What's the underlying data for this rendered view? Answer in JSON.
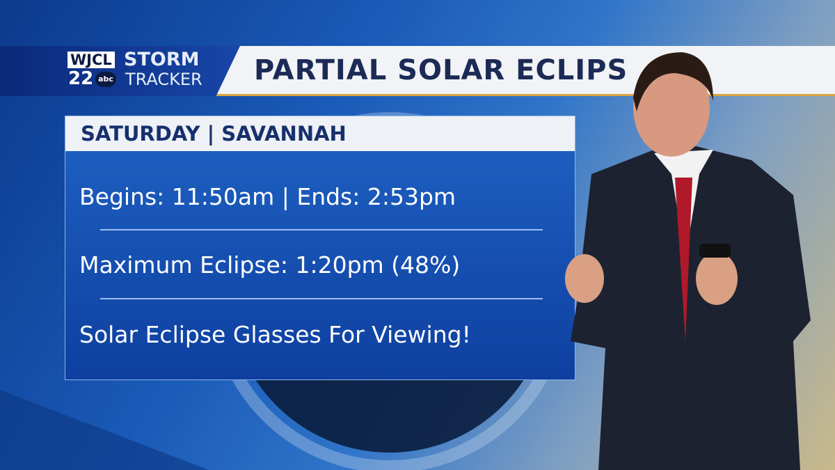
{
  "logo": {
    "station": "WJCL",
    "channel": "22",
    "network": "abc",
    "brand_line1": "STORM",
    "brand_line2": "TRACKER"
  },
  "header": {
    "title": "PARTIAL SOLAR ECLIPS"
  },
  "panel": {
    "heading": "SATURDAY | SAVANNAH",
    "lines": [
      "Begins: 11:50am | Ends: 2:53pm",
      "Maximum Eclipse: 1:20pm (48%)",
      "Solar Eclipse Glasses For Viewing!"
    ]
  },
  "colors": {
    "accent": "#d9a441",
    "panel": "#1650b0",
    "header_text": "#1c2b55"
  }
}
